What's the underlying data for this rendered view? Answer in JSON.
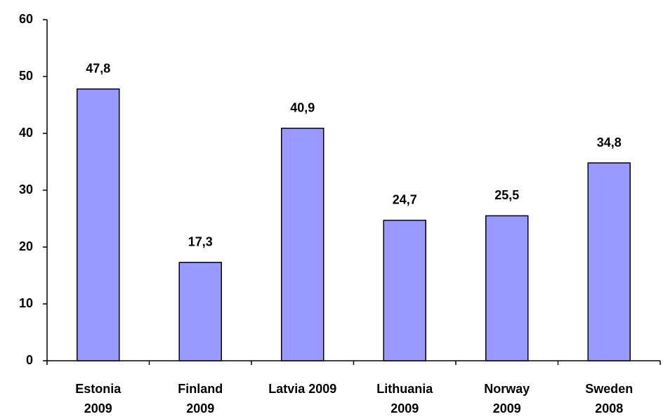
{
  "chart_data": {
    "type": "bar",
    "categories": [
      "Estonia 2009",
      "Finland 2009",
      "Latvia 2009",
      "Lithuania 2009",
      "Norway 2009",
      "Sweden 2008"
    ],
    "values": [
      47.8,
      17.3,
      40.9,
      24.7,
      25.5,
      34.8
    ],
    "value_labels": [
      "47,8",
      "17,3",
      "40,9",
      "24,7",
      "25,5",
      "34,8"
    ],
    "color": "#9999ff",
    "ylim": [
      0,
      60
    ],
    "yticks": [
      0,
      10,
      20,
      30,
      40,
      50,
      60
    ],
    "grid": false
  }
}
